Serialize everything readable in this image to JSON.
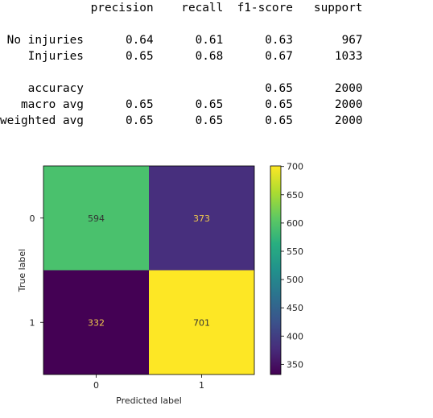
{
  "classification_report": {
    "header": [
      "precision",
      "recall",
      "f1-score",
      "support"
    ],
    "rows": [
      {
        "label": "No injuries",
        "values": [
          "0.64",
          "0.61",
          "0.63",
          "967"
        ]
      },
      {
        "label": "Injuries",
        "values": [
          "0.65",
          "0.68",
          "0.67",
          "1033"
        ]
      },
      null,
      {
        "label": "accuracy",
        "values": [
          "",
          "",
          "0.65",
          "2000"
        ]
      },
      {
        "label": "macro avg",
        "values": [
          "0.65",
          "0.65",
          "0.65",
          "2000"
        ]
      },
      {
        "label": "weighted avg",
        "values": [
          "0.65",
          "0.65",
          "0.65",
          "2000"
        ]
      }
    ]
  },
  "chart_data": {
    "type": "heatmap",
    "xlabel": "Predicted label",
    "ylabel": "True label",
    "x_categories": [
      "0",
      "1"
    ],
    "y_categories": [
      "0",
      "1"
    ],
    "values": [
      [
        594,
        373
      ],
      [
        332,
        701
      ]
    ],
    "colorbar": {
      "colormap": "viridis",
      "range": [
        332,
        701
      ],
      "ticks": [
        350,
        400,
        450,
        500,
        550,
        600,
        650,
        700
      ]
    },
    "colors": {
      "cell_0_0": "#4ac16d",
      "cell_0_1": "#472f7d",
      "cell_1_0": "#440154",
      "cell_1_1": "#fde725",
      "text_on_light": "#333333",
      "text_on_dark": "#f0c94c"
    }
  }
}
